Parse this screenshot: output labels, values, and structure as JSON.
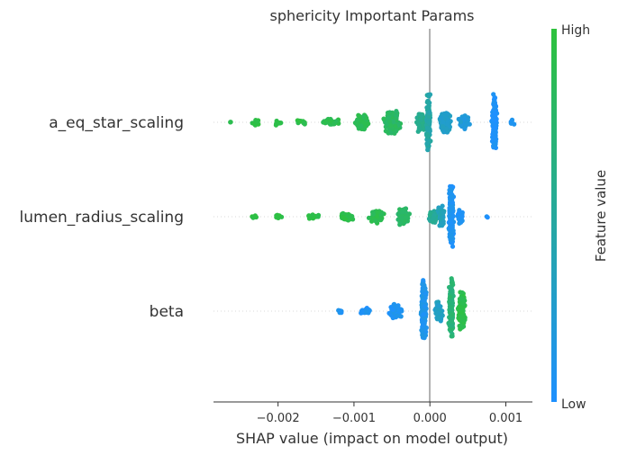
{
  "chart_data": {
    "type": "scatter",
    "subtype": "shap-beeswarm",
    "title": "sphericity Important Params",
    "xlabel": "SHAP value (impact on model output)",
    "xlim": [
      -0.00285,
      0.00135
    ],
    "x_ticks": [
      {
        "value": -0.002,
        "label": "−0.002"
      },
      {
        "value": -0.001,
        "label": "−0.001"
      },
      {
        "value": 0.0,
        "label": "0.000"
      },
      {
        "value": 0.001,
        "label": "0.001"
      }
    ],
    "features": [
      {
        "name": "a_eq_star_scaling",
        "clusters": [
          {
            "center": -0.00263,
            "spread": 2e-05,
            "height": 1.5,
            "count": 2,
            "fv": 0.9
          },
          {
            "center": -0.0023,
            "spread": 7e-05,
            "height": 3.5,
            "count": 14,
            "fv": 0.95
          },
          {
            "center": -0.002,
            "spread": 6e-05,
            "height": 3.5,
            "count": 12,
            "fv": 0.95
          },
          {
            "center": -0.00168,
            "spread": 9e-05,
            "height": 3,
            "count": 12,
            "fv": 0.93
          },
          {
            "center": -0.0013,
            "spread": 0.00014,
            "height": 4,
            "count": 40,
            "fv": 0.9
          },
          {
            "center": -0.0009,
            "spread": 0.00012,
            "height": 9,
            "count": 70,
            "fv": 0.87
          },
          {
            "center": -0.0005,
            "spread": 0.00014,
            "height": 14,
            "count": 130,
            "fv": 0.8
          },
          {
            "center": -0.00012,
            "spread": 8e-05,
            "height": 12,
            "count": 60,
            "fv": 0.6
          },
          {
            "center": -2e-05,
            "spread": 3e-05,
            "height": 34,
            "count": 120,
            "fv": 0.45
          },
          {
            "center": 0.0002,
            "spread": 0.0001,
            "height": 13,
            "count": 90,
            "fv": 0.3
          },
          {
            "center": 0.00045,
            "spread": 0.0001,
            "height": 8,
            "count": 50,
            "fv": 0.2
          },
          {
            "center": 0.00085,
            "spread": 4e-05,
            "height": 34,
            "count": 180,
            "fv": 0.02
          },
          {
            "center": 0.00107,
            "spread": 5e-05,
            "height": 3,
            "count": 8,
            "fv": 0.05
          }
        ]
      },
      {
        "name": "lumen_radius_scaling",
        "clusters": [
          {
            "center": -0.00232,
            "spread": 5e-05,
            "height": 2.5,
            "count": 5,
            "fv": 0.97
          },
          {
            "center": -0.002,
            "spread": 7e-05,
            "height": 3,
            "count": 8,
            "fv": 0.97
          },
          {
            "center": -0.00155,
            "spread": 0.0001,
            "height": 3,
            "count": 20,
            "fv": 0.95
          },
          {
            "center": -0.0011,
            "spread": 0.00012,
            "height": 5,
            "count": 50,
            "fv": 0.93
          },
          {
            "center": -0.0007,
            "spread": 0.00012,
            "height": 8,
            "count": 80,
            "fv": 0.88
          },
          {
            "center": -0.00035,
            "spread": 0.0001,
            "height": 10,
            "count": 80,
            "fv": 0.78
          },
          {
            "center": 5e-05,
            "spread": 8e-05,
            "height": 8,
            "count": 60,
            "fv": 0.55
          },
          {
            "center": 0.00015,
            "spread": 6e-05,
            "height": 12,
            "count": 50,
            "fv": 0.35
          },
          {
            "center": 0.00028,
            "spread": 4e-05,
            "height": 38,
            "count": 200,
            "fv": 0.07
          },
          {
            "center": 0.0004,
            "spread": 5e-05,
            "height": 9,
            "count": 40,
            "fv": 0.05
          },
          {
            "center": 0.00075,
            "spread": 2e-05,
            "height": 1.5,
            "count": 2,
            "fv": 0.02
          }
        ]
      },
      {
        "name": "beta",
        "clusters": [
          {
            "center": -0.00118,
            "spread": 4e-05,
            "height": 2.5,
            "count": 6,
            "fv": 0.05
          },
          {
            "center": -0.00085,
            "spread": 0.0001,
            "height": 4,
            "count": 35,
            "fv": 0.05
          },
          {
            "center": -0.00045,
            "spread": 0.0001,
            "height": 9,
            "count": 80,
            "fv": 0.07
          },
          {
            "center": -8e-05,
            "spread": 4e-05,
            "height": 36,
            "count": 200,
            "fv": 0.1
          },
          {
            "center": 0.00012,
            "spread": 6e-05,
            "height": 12,
            "count": 60,
            "fv": 0.3
          },
          {
            "center": 0.00028,
            "spread": 4e-05,
            "height": 38,
            "count": 160,
            "fv": 0.7
          },
          {
            "center": 0.00042,
            "spread": 6e-05,
            "height": 24,
            "count": 120,
            "fv": 0.92
          }
        ]
      }
    ],
    "colorbar": {
      "label": "Feature value",
      "high_label": "High",
      "low_label": "Low",
      "high_color": "#2ec23c",
      "low_color": "#1e90ff"
    },
    "zero_line": true,
    "grid": false
  }
}
